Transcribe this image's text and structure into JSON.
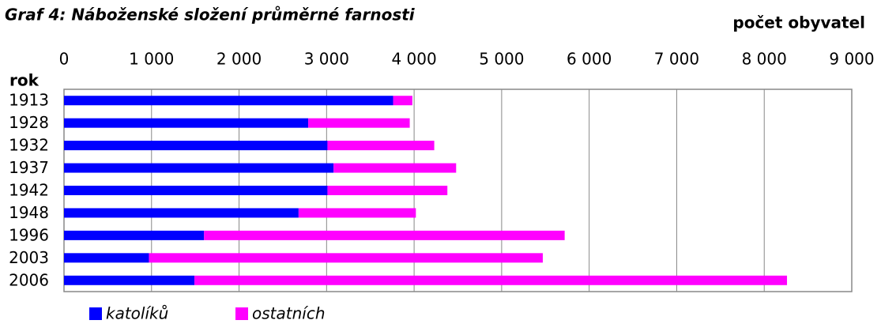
{
  "chart_data": {
    "type": "hbar_stacked",
    "title": "Graf 4: Náboženské složení průměrné farnosti",
    "x_label": "počet obyvatel",
    "y_label": "rok",
    "categories": [
      "1913",
      "1928",
      "1932",
      "1937",
      "1942",
      "1948",
      "1996",
      "2003",
      "2006"
    ],
    "series": [
      {
        "name": "katolíků",
        "color": "#0000ff",
        "values": [
          3760,
          2790,
          3010,
          3080,
          3010,
          2680,
          1600,
          970,
          1490
        ]
      },
      {
        "name": "ostatních",
        "color": "#ff00ff",
        "values": [
          220,
          1160,
          1220,
          1400,
          1370,
          1340,
          4120,
          4500,
          6770
        ]
      }
    ],
    "xlim": [
      0,
      9000
    ],
    "xticks": [
      0,
      {
        "value": 1000,
        "label": "1 000"
      },
      {
        "value": 2000,
        "label": "2 000"
      },
      {
        "value": 3000,
        "label": "3 000"
      },
      {
        "value": 4000,
        "label": "4 000"
      },
      {
        "value": 5000,
        "label": "5 000"
      },
      {
        "value": 6000,
        "label": "6 000"
      },
      {
        "value": 7000,
        "label": "7 000"
      },
      {
        "value": 8000,
        "label": "8 000"
      },
      {
        "value": 9000,
        "label": "9 000"
      }
    ],
    "grid": true,
    "legend": "bottom"
  }
}
